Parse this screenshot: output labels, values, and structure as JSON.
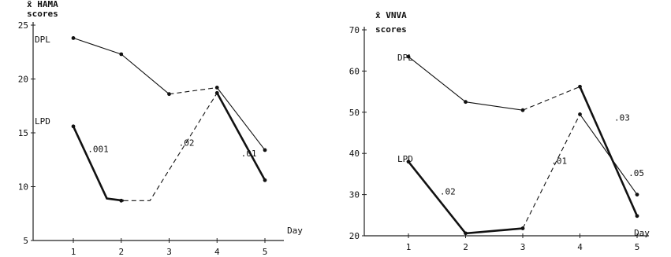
{
  "chart_data": [
    {
      "type": "line",
      "ylabel_line1": "x̄ HAMA",
      "ylabel_line2": "scores",
      "xlabel": "Day",
      "x": [
        1,
        2,
        3,
        4,
        5
      ],
      "ylim": [
        5,
        25
      ],
      "yticks": [
        "5",
        "10",
        "15",
        "20",
        "25"
      ],
      "xticks": [
        "1",
        "2",
        "3",
        "4",
        "5"
      ],
      "series_labels": [
        "DPL",
        "LPD"
      ],
      "segments": [
        {
          "style": "thin",
          "points": [
            [
              1,
              23.8
            ],
            [
              2,
              22.3
            ],
            [
              3,
              18.6
            ]
          ]
        },
        {
          "style": "dashed",
          "points": [
            [
              3,
              18.6
            ],
            [
              4,
              19.2
            ]
          ]
        },
        {
          "style": "thin",
          "points": [
            [
              4,
              19.2
            ],
            [
              5,
              13.4
            ]
          ]
        },
        {
          "style": "thick",
          "points": [
            [
              1,
              15.6
            ],
            [
              1.7,
              8.9
            ],
            [
              2.05,
              8.7
            ]
          ]
        },
        {
          "style": "dashed",
          "points": [
            [
              2.05,
              8.7
            ],
            [
              2.6,
              8.7
            ],
            [
              4,
              18.7
            ]
          ]
        },
        {
          "style": "thick",
          "points": [
            [
              4,
              18.7
            ],
            [
              5,
              10.6
            ]
          ]
        }
      ],
      "markers": [
        [
          1,
          23.8
        ],
        [
          2,
          22.3
        ],
        [
          3,
          18.6
        ],
        [
          4,
          19.2
        ],
        [
          5,
          13.4
        ],
        [
          1,
          15.6
        ],
        [
          2,
          8.7
        ],
        [
          4,
          18.7
        ],
        [
          5,
          10.6
        ]
      ],
      "annotations": [
        {
          "text": ".001",
          "x": 1.3,
          "y": 13.2
        },
        {
          "text": ".02",
          "x": 3.2,
          "y": 13.8
        },
        {
          "text": ".01",
          "x": 4.5,
          "y": 12.8
        }
      ]
    },
    {
      "type": "line",
      "ylabel_line1": "x̄ VNVA",
      "ylabel_line2": "scores",
      "xlabel": "Day",
      "x": [
        1,
        2,
        3,
        4,
        5
      ],
      "ylim": [
        20,
        70
      ],
      "yticks": [
        "20",
        "30",
        "40",
        "50",
        "60",
        "70"
      ],
      "xticks": [
        "1",
        "2",
        "3",
        "4",
        "5"
      ],
      "series_labels": [
        "DPL",
        "LPD"
      ],
      "segments": [
        {
          "style": "thin",
          "points": [
            [
              1,
              63.5
            ],
            [
              2,
              52.5
            ],
            [
              3,
              50.5
            ]
          ]
        },
        {
          "style": "dashed",
          "points": [
            [
              3,
              50.5
            ],
            [
              4,
              56.2
            ]
          ]
        },
        {
          "style": "thick",
          "points": [
            [
              4,
              56.2
            ],
            [
              5,
              24.8
            ]
          ]
        },
        {
          "style": "thick",
          "points": [
            [
              1,
              38
            ],
            [
              2,
              20.6
            ],
            [
              3,
              21.8
            ]
          ]
        },
        {
          "style": "dashed",
          "points": [
            [
              3,
              21.8
            ],
            [
              4,
              49.5
            ]
          ]
        },
        {
          "style": "thin",
          "points": [
            [
              4,
              49.5
            ],
            [
              5,
              30
            ]
          ]
        }
      ],
      "markers": [
        [
          1,
          63.5
        ],
        [
          2,
          52.5
        ],
        [
          3,
          50.5
        ],
        [
          4,
          56.2
        ],
        [
          5,
          24.8
        ],
        [
          1,
          38
        ],
        [
          2,
          20.6
        ],
        [
          3,
          21.8
        ],
        [
          4,
          49.5
        ],
        [
          5,
          30
        ]
      ],
      "annotations": [
        {
          "text": ".02",
          "x": 1.55,
          "y": 30
        },
        {
          "text": ".01",
          "x": 3.5,
          "y": 37.5
        },
        {
          "text": ".03",
          "x": 4.6,
          "y": 48
        },
        {
          "text": ".05",
          "x": 4.85,
          "y": 34.5
        }
      ]
    }
  ]
}
